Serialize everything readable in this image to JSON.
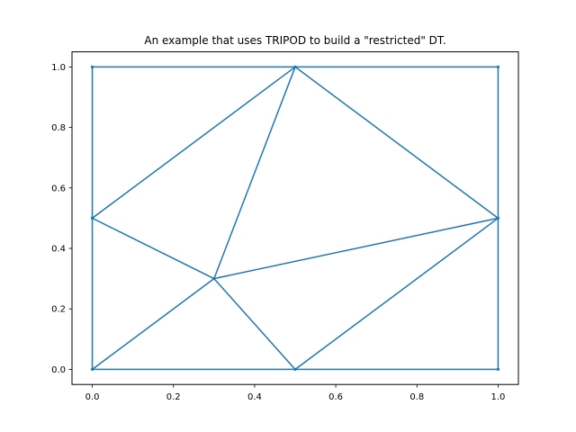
{
  "chart_data": {
    "type": "line",
    "title": "An example that uses TRIPOD to build a \"restricted\" DT.",
    "xlabel": "",
    "ylabel": "",
    "xlim": [
      -0.05,
      1.05
    ],
    "ylim": [
      -0.05,
      1.05
    ],
    "grid": false,
    "x_ticks": [
      {
        "value": 0.0,
        "label": "0.0"
      },
      {
        "value": 0.2,
        "label": "0.2"
      },
      {
        "value": 0.4,
        "label": "0.4"
      },
      {
        "value": 0.6,
        "label": "0.6"
      },
      {
        "value": 0.8,
        "label": "0.8"
      },
      {
        "value": 1.0,
        "label": "1.0"
      }
    ],
    "y_ticks": [
      {
        "value": 0.0,
        "label": "0.0"
      },
      {
        "value": 0.2,
        "label": "0.2"
      },
      {
        "value": 0.4,
        "label": "0.4"
      },
      {
        "value": 0.6,
        "label": "0.6"
      },
      {
        "value": 0.8,
        "label": "0.8"
      },
      {
        "value": 1.0,
        "label": "1.0"
      }
    ],
    "color": "#1f77b4",
    "points": [
      {
        "x": 0.0,
        "y": 0.0
      },
      {
        "x": 0.5,
        "y": 0.0
      },
      {
        "x": 1.0,
        "y": 0.0
      },
      {
        "x": 0.0,
        "y": 0.5
      },
      {
        "x": 0.3,
        "y": 0.3
      },
      {
        "x": 1.0,
        "y": 0.5
      },
      {
        "x": 0.0,
        "y": 1.0
      },
      {
        "x": 0.5,
        "y": 1.0
      },
      {
        "x": 1.0,
        "y": 1.0
      }
    ],
    "edges": [
      [
        0,
        1
      ],
      [
        1,
        2
      ],
      [
        2,
        5
      ],
      [
        5,
        8
      ],
      [
        8,
        7
      ],
      [
        7,
        6
      ],
      [
        6,
        3
      ],
      [
        3,
        0
      ],
      [
        3,
        7
      ],
      [
        3,
        4
      ],
      [
        0,
        4
      ],
      [
        4,
        1
      ],
      [
        4,
        7
      ],
      [
        4,
        5
      ],
      [
        7,
        5
      ],
      [
        1,
        5
      ]
    ]
  }
}
